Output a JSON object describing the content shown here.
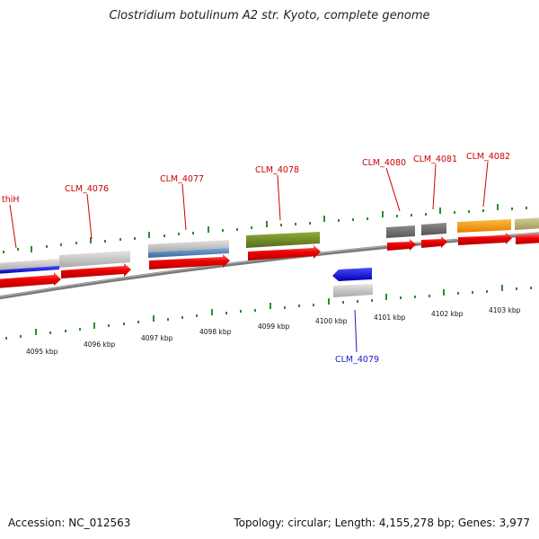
{
  "header": {
    "title": "Clostridium botulinum A2 str. Kyoto, complete genome"
  },
  "footer": {
    "accession": "Accession: NC_012563",
    "summary": "Topology: circular; Length: 4,155,278 bp; Genes: 3,977"
  },
  "gene_labels": [
    {
      "id": "thiH",
      "text": "thiH",
      "strand": "forward"
    },
    {
      "id": "clm4076",
      "text": "CLM_4076",
      "strand": "forward"
    },
    {
      "id": "clm4077",
      "text": "CLM_4077",
      "strand": "forward"
    },
    {
      "id": "clm4078",
      "text": "CLM_4078",
      "strand": "forward"
    },
    {
      "id": "clm4080",
      "text": "CLM_4080",
      "strand": "forward"
    },
    {
      "id": "clm4081",
      "text": "CLM_4081",
      "strand": "forward"
    },
    {
      "id": "clm4082",
      "text": "CLM_4082",
      "strand": "forward"
    },
    {
      "id": "clm4079",
      "text": "CLM_4079",
      "strand": "reverse"
    }
  ],
  "ruler_labels": [
    "4095 kbp",
    "4096 kbp",
    "4097 kbp",
    "4098 kbp",
    "4099 kbp",
    "4100 kbp",
    "4101 kbp",
    "4102 kbp",
    "4103 kbp"
  ],
  "colors": {
    "cds": "#ee0000",
    "gene_gray": "#bdbdbd",
    "gene_dark": "#6e6e6e",
    "gene_blue": "#0000dd",
    "gene_steel": "#4a7fb5",
    "gene_olive": "#6f8a22",
    "gene_orange": "#ff9900",
    "gene_khaki": "#bdb76b",
    "tick_green": "#2e8b2e",
    "backbone": "#888888"
  }
}
